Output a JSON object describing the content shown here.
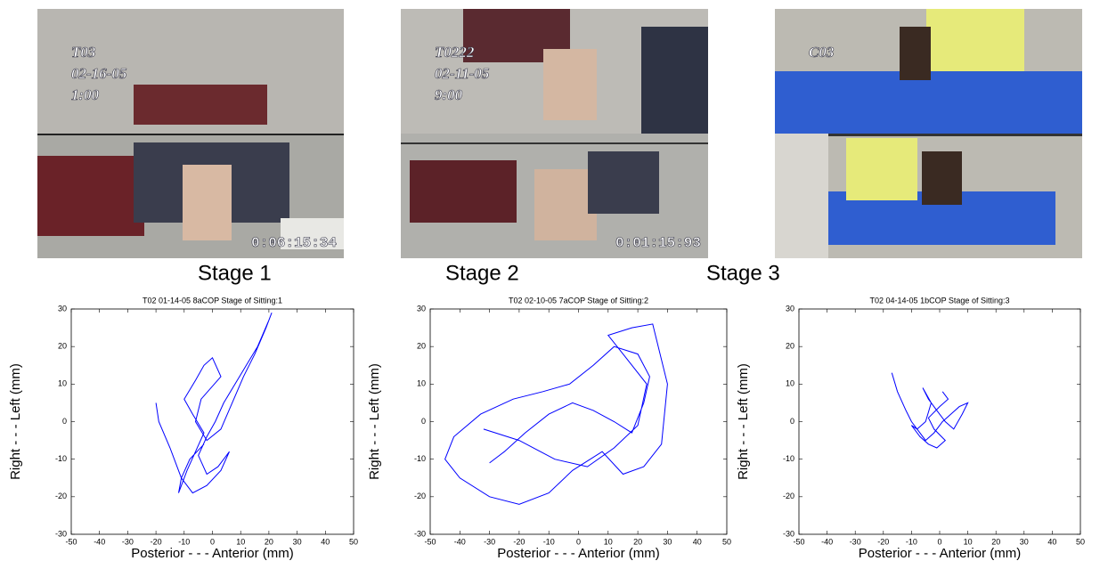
{
  "photos": [
    {
      "caption": "Stage 1",
      "overlay": [
        "T03",
        "02-16-05",
        "1:00"
      ],
      "timecode": "0:06:15:34"
    },
    {
      "caption": "Stage 2",
      "overlay": [
        "T0222",
        "02-11-05",
        "9:00"
      ],
      "timecode": "0:01:15:93"
    },
    {
      "caption": "Stage 3",
      "overlay": [
        "C03"
      ]
    }
  ],
  "chart_data": [
    {
      "type": "line",
      "title": "T02 01-14-05 8aCOP    Stage of Sitting:1",
      "xlabel": "Posterior - - - Anterior (mm)",
      "ylabel": "Right - - - Left (mm)",
      "xlim": [
        -50,
        50
      ],
      "ylim": [
        -30,
        30
      ],
      "xticks": [
        -50,
        -40,
        -30,
        -20,
        -10,
        0,
        10,
        20,
        30,
        40,
        50
      ],
      "yticks": [
        -30,
        -20,
        -10,
        0,
        10,
        20,
        30
      ],
      "color": "#0000ff",
      "x": [
        -20,
        -19,
        -15,
        -11,
        -12,
        -9,
        -6,
        -3,
        -7,
        -10,
        -6,
        -3,
        0,
        3,
        -4,
        -6,
        -2,
        3,
        7,
        11,
        15,
        19,
        21,
        20,
        16,
        12,
        8,
        4,
        1,
        -2,
        -5,
        -2,
        2,
        6,
        3,
        -2,
        -7,
        -11,
        -8,
        -3
      ],
      "values": [
        5,
        0,
        -7,
        -15,
        -19,
        -13,
        -8,
        -3,
        2,
        6,
        11,
        15,
        17,
        12,
        6,
        0,
        -5,
        -2,
        5,
        12,
        18,
        25,
        29,
        27,
        20,
        15,
        10,
        5,
        0,
        -4,
        -9,
        -14,
        -12,
        -8,
        -13,
        -17,
        -19,
        -15,
        -10,
        -6
      ]
    },
    {
      "type": "line",
      "title": "T02 02-10-05 7aCOP    Stage of Sitting:2",
      "xlabel": "Posterior - - - Anterior (mm)",
      "ylabel": "Right - - - Left (mm)",
      "xlim": [
        -50,
        50
      ],
      "ylim": [
        -30,
        30
      ],
      "xticks": [
        -50,
        -40,
        -30,
        -20,
        -10,
        0,
        10,
        20,
        30,
        40,
        50
      ],
      "yticks": [
        -30,
        -20,
        -10,
        0,
        10,
        20,
        30
      ],
      "color": "#0000ff",
      "x": [
        -30,
        -25,
        -18,
        -10,
        -2,
        5,
        12,
        18,
        22,
        24,
        20,
        12,
        5,
        -3,
        -12,
        -22,
        -33,
        -42,
        -45,
        -40,
        -30,
        -20,
        -10,
        -2,
        8,
        15,
        22,
        28,
        30,
        25,
        18,
        10,
        15,
        23,
        20,
        12,
        3,
        -8,
        -20,
        -32
      ],
      "values": [
        -11,
        -8,
        -3,
        2,
        5,
        3,
        0,
        -3,
        5,
        12,
        18,
        20,
        15,
        10,
        8,
        6,
        2,
        -4,
        -10,
        -15,
        -20,
        -22,
        -19,
        -13,
        -8,
        -14,
        -12,
        -6,
        10,
        26,
        25,
        23,
        18,
        10,
        -1,
        -7,
        -12,
        -10,
        -5,
        -2
      ]
    },
    {
      "type": "line",
      "title": "T02 04-14-05 1bCOP    Stage of Sitting:3",
      "xlabel": "Posterior - - - Anterior (mm)",
      "ylabel": "Right - - - Left (mm)",
      "xlim": [
        -50,
        50
      ],
      "ylim": [
        -30,
        30
      ],
      "xticks": [
        -50,
        -40,
        -30,
        -20,
        -10,
        0,
        10,
        20,
        30,
        40,
        50
      ],
      "yticks": [
        -30,
        -20,
        -10,
        0,
        10,
        20,
        30
      ],
      "color": "#0000ff",
      "x": [
        -17,
        -15,
        -12,
        -10,
        -8,
        -5,
        -3,
        -6,
        -4,
        -1,
        2,
        5,
        8,
        10,
        7,
        4,
        1,
        -2,
        -5,
        -8,
        -10,
        -7,
        -4,
        -1,
        2,
        -2,
        -4,
        0,
        3,
        1
      ],
      "values": [
        13,
        8,
        3,
        0,
        -2,
        0,
        5,
        9,
        6,
        3,
        0,
        -2,
        2,
        5,
        4,
        2,
        0,
        -3,
        -5,
        -2,
        -1,
        -4,
        -6,
        -7,
        -5,
        -2,
        1,
        4,
        6,
        8
      ]
    }
  ]
}
